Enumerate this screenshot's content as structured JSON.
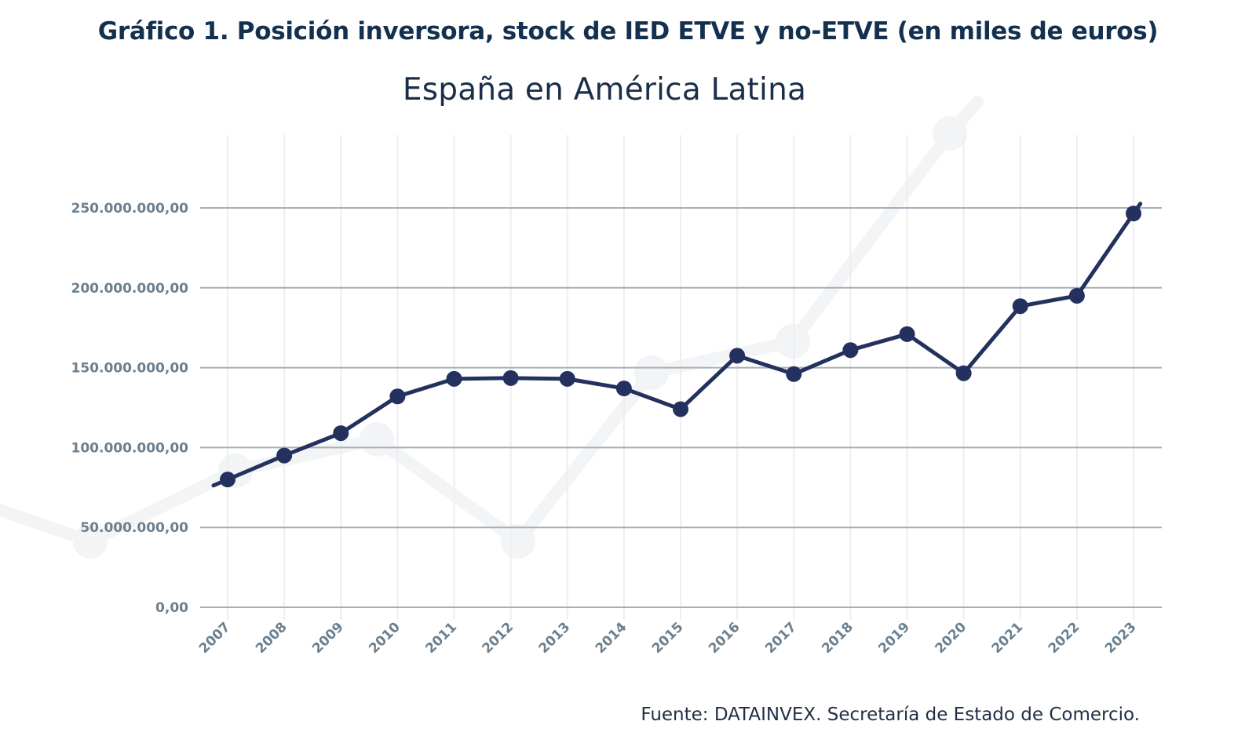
{
  "header": {
    "title": "Gráfico 1. Posición inversora, stock de IED ETVE y no-ETVE (en miles de euros)",
    "subtitle": "España en América Latina"
  },
  "footer": {
    "source": "Fuente: DATAINVEX. Secretaría de Estado de Comercio."
  },
  "colors": {
    "line": "#24305e",
    "grid_major": "#a4b0b9",
    "grid_minor": "#eceef1",
    "tick_text": "#6b7f8e",
    "watermark": "#f3f4f6"
  },
  "chart_data": {
    "type": "line",
    "title": "España en América Latina",
    "xlabel": "",
    "ylabel": "",
    "categories": [
      "2007",
      "2008",
      "2009",
      "2010",
      "2011",
      "2012",
      "2013",
      "2014",
      "2015",
      "2016",
      "2017",
      "2018",
      "2019",
      "2020",
      "2021",
      "2022",
      "2023"
    ],
    "series": [
      {
        "name": "Stock de IED ETVE y no-ETVE",
        "values": [
          80000000,
          95000000,
          109000000,
          132000000,
          143000000,
          143500000,
          143000000,
          137000000,
          124000000,
          157500000,
          146000000,
          161000000,
          171000000,
          146500000,
          188500000,
          195000000,
          246500000
        ]
      }
    ],
    "ylim": [
      0,
      250000000
    ],
    "yticks": [
      0,
      50000000,
      100000000,
      150000000,
      200000000,
      250000000
    ],
    "ytick_labels": [
      "0,00",
      "50.000.000,00",
      "100.000.000,00",
      "150.000.000,00",
      "200.000.000,00",
      "250.000.000,00"
    ],
    "xtick_rotation": "diagonal",
    "grid": true,
    "legend": "none",
    "markers": true
  }
}
